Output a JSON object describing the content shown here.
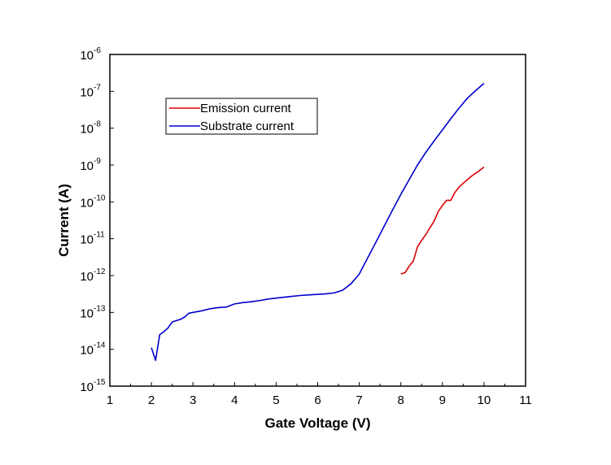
{
  "chart_data": {
    "type": "line",
    "title": "",
    "xlabel": "Gate Voltage (V)",
    "ylabel": "Current (A)",
    "xlim": [
      1,
      11
    ],
    "ylim": [
      1e-15,
      1e-06
    ],
    "yscale": "log",
    "grid": false,
    "legend_position": "top-left",
    "x_ticks": [
      "1",
      "2",
      "3",
      "4",
      "5",
      "6",
      "7",
      "8",
      "9",
      "10",
      "11"
    ],
    "y_ticks": [
      {
        "base": "10",
        "exp": "-15",
        "value": 1e-15
      },
      {
        "base": "10",
        "exp": "-14",
        "value": 1e-14
      },
      {
        "base": "10",
        "exp": "-13",
        "value": 1e-13
      },
      {
        "base": "10",
        "exp": "-12",
        "value": 1e-12
      },
      {
        "base": "10",
        "exp": "-11",
        "value": 1e-11
      },
      {
        "base": "10",
        "exp": "-10",
        "value": 1e-10
      },
      {
        "base": "10",
        "exp": "-9",
        "value": 1e-09
      },
      {
        "base": "10",
        "exp": "-8",
        "value": 1e-08
      },
      {
        "base": "10",
        "exp": "-7",
        "value": 1e-07
      },
      {
        "base": "10",
        "exp": "-6",
        "value": 1e-06
      }
    ],
    "series": [
      {
        "name": "Emission current",
        "color": "#dd0000",
        "x": [
          8.0,
          8.1,
          8.2,
          8.3,
          8.4,
          8.5,
          8.6,
          8.7,
          8.8,
          8.9,
          9.0,
          9.1,
          9.2,
          9.3,
          9.4,
          9.5,
          9.6,
          9.7,
          9.8,
          9.9,
          10.0
        ],
        "y": [
          1.1e-12,
          1.2e-12,
          1.8e-12,
          2.5e-12,
          6e-12,
          9e-12,
          1.3e-11,
          2e-11,
          3e-11,
          5.5e-11,
          8e-11,
          1.1e-10,
          1.1e-10,
          1.8e-10,
          2.5e-10,
          3.2e-10,
          4e-10,
          5e-10,
          6e-10,
          7.2e-10,
          8.8e-10
        ]
      },
      {
        "name": "Substrate current",
        "color": "#0000cc",
        "x": [
          2.0,
          2.1,
          2.2,
          2.3,
          2.4,
          2.5,
          2.6,
          2.7,
          2.8,
          2.9,
          3.0,
          3.2,
          3.4,
          3.6,
          3.8,
          4.0,
          4.2,
          4.4,
          4.6,
          4.8,
          5.0,
          5.2,
          5.4,
          5.6,
          5.8,
          6.0,
          6.2,
          6.4,
          6.6,
          6.8,
          7.0,
          7.2,
          7.4,
          7.6,
          7.8,
          8.0,
          8.2,
          8.4,
          8.6,
          8.8,
          9.0,
          9.2,
          9.4,
          9.6,
          9.8,
          10.0
        ],
        "y": [
          1.1e-14,
          5e-15,
          2.5e-14,
          3e-14,
          3.8e-14,
          5.5e-14,
          6e-14,
          6.5e-14,
          7.5e-14,
          9.5e-14,
          1e-13,
          1.1e-13,
          1.25e-13,
          1.35e-13,
          1.4e-13,
          1.7e-13,
          1.85e-13,
          1.95e-13,
          2.1e-13,
          2.3e-13,
          2.45e-13,
          2.6e-13,
          2.75e-13,
          2.9e-13,
          3e-13,
          3.1e-13,
          3.2e-13,
          3.4e-13,
          4e-13,
          6e-13,
          1.1e-12,
          3e-12,
          8e-12,
          2.2e-11,
          6e-11,
          1.6e-10,
          4e-10,
          1e-09,
          2.2e-09,
          4.5e-09,
          9e-09,
          1.8e-08,
          3.5e-08,
          6.5e-08,
          1.05e-07,
          1.65e-07
        ]
      }
    ]
  }
}
